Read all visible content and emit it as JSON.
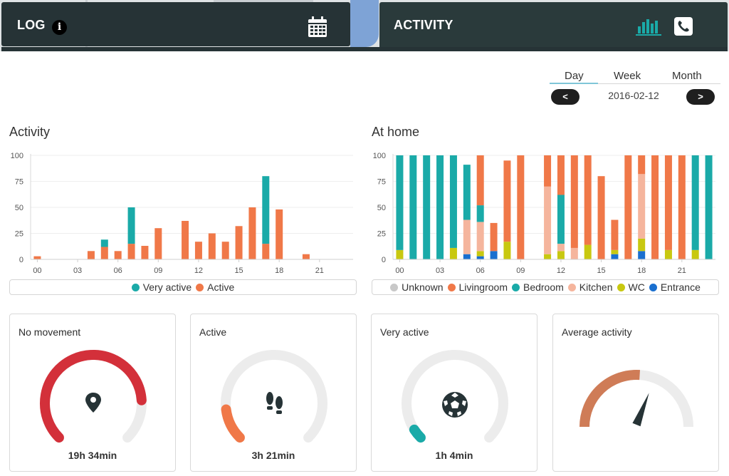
{
  "header": {
    "log_title": "LOG",
    "info_label": "i",
    "activity_title": "ACTIVITY",
    "icons": [
      "calendar-icon",
      "bar-chart-icon",
      "phone-icon",
      "info-icon"
    ]
  },
  "date_nav": {
    "tabs": [
      "Day",
      "Week",
      "Month"
    ],
    "active_tab": "Day",
    "prev_label": "<",
    "next_label": ">",
    "date": "2016-02-12"
  },
  "colors": {
    "very_active": "#1aaaa8",
    "active": "#f07848",
    "unknown": "#c8c8c8",
    "livingroom": "#f07848",
    "bedroom": "#1aaaa8",
    "kitchen": "#f5b59d",
    "wc": "#c8c810",
    "entrance": "#1a6fcf",
    "gauge_no_movement": "#d3303a",
    "gauge_active": "#f07848",
    "gauge_very_active": "#1aaaa8",
    "gauge_average": "#cf7c57",
    "gauge_track": "#ececec"
  },
  "chart_data": [
    {
      "type": "bar",
      "title": "Activity",
      "x": [
        0,
        1,
        2,
        3,
        4,
        5,
        6,
        7,
        8,
        9,
        10,
        11,
        12,
        13,
        14,
        15,
        16,
        17,
        18,
        19,
        20,
        21,
        22,
        23
      ],
      "xticks": [
        "00",
        "03",
        "06",
        "09",
        "12",
        "15",
        "18",
        "21"
      ],
      "yticks": [
        "0",
        "25",
        "50",
        "75",
        "100"
      ],
      "ylim": [
        0,
        100
      ],
      "stacked": true,
      "series": [
        {
          "name": "Active",
          "color": "#f07848",
          "values": [
            3,
            0,
            0,
            0,
            8,
            12,
            8,
            15,
            13,
            30,
            0,
            37,
            17,
            25,
            17,
            32,
            50,
            15,
            48,
            0,
            5,
            0,
            0,
            0
          ]
        },
        {
          "name": "Very active",
          "color": "#1aaaa8",
          "values": [
            0,
            0,
            0,
            0,
            0,
            7,
            0,
            35,
            0,
            0,
            0,
            0,
            0,
            0,
            0,
            0,
            0,
            65,
            0,
            0,
            0,
            0,
            0,
            0
          ]
        }
      ],
      "legend": [
        "Very active",
        "Active"
      ]
    },
    {
      "type": "bar",
      "title": "At home",
      "x": [
        0,
        1,
        2,
        3,
        4,
        5,
        6,
        7,
        8,
        9,
        10,
        11,
        12,
        13,
        14,
        15,
        16,
        17,
        18,
        19,
        20,
        21,
        22,
        23
      ],
      "xticks": [
        "00",
        "03",
        "06",
        "09",
        "12",
        "15",
        "18",
        "21"
      ],
      "yticks": [
        "0",
        "25",
        "50",
        "75",
        "100"
      ],
      "ylim": [
        0,
        100
      ],
      "stacked": true,
      "series": [
        {
          "name": "Entrance",
          "color": "#1a6fcf",
          "values": [
            0,
            0,
            0,
            0,
            0,
            5,
            3,
            8,
            0,
            0,
            0,
            0,
            0,
            0,
            0,
            0,
            5,
            0,
            8,
            0,
            0,
            0,
            0,
            0
          ]
        },
        {
          "name": "WC",
          "color": "#c8c810",
          "values": [
            9,
            0,
            0,
            0,
            11,
            0,
            5,
            0,
            17,
            0,
            0,
            5,
            8,
            0,
            14,
            0,
            4,
            0,
            12,
            0,
            9,
            0,
            9,
            0
          ]
        },
        {
          "name": "Kitchen",
          "color": "#f5b59d",
          "values": [
            0,
            0,
            0,
            0,
            0,
            33,
            28,
            0,
            0,
            0,
            0,
            65,
            7,
            11,
            0,
            0,
            0,
            0,
            62,
            0,
            0,
            0,
            0,
            0
          ]
        },
        {
          "name": "Bedroom",
          "color": "#1aaaa8",
          "values": [
            91,
            100,
            100,
            100,
            89,
            53,
            16,
            0,
            0,
            0,
            0,
            0,
            47,
            0,
            0,
            0,
            0,
            0,
            0,
            0,
            0,
            0,
            91,
            100
          ]
        },
        {
          "name": "Livingroom",
          "color": "#f07848",
          "values": [
            0,
            0,
            0,
            0,
            0,
            0,
            48,
            27,
            78,
            100,
            0,
            30,
            38,
            89,
            86,
            80,
            29,
            100,
            18,
            100,
            91,
            100,
            0,
            0
          ]
        },
        {
          "name": "Unknown",
          "color": "#c8c8c8",
          "values": [
            0,
            0,
            0,
            0,
            0,
            0,
            0,
            0,
            0,
            0,
            0,
            0,
            0,
            0,
            0,
            0,
            0,
            0,
            0,
            0,
            0,
            0,
            0,
            0
          ]
        }
      ],
      "legend": [
        "Unknown",
        "Livingroom",
        "Bedroom",
        "Kitchen",
        "WC",
        "Entrance"
      ]
    }
  ],
  "cards": [
    {
      "title": "No movement",
      "value": "19h 34min",
      "icon": "map-pin-icon",
      "fraction": 0.82
    },
    {
      "title": "Active",
      "value": "3h 21min",
      "icon": "footprints-icon",
      "fraction": 0.14
    },
    {
      "title": "Very active",
      "value": "1h 4min",
      "icon": "soccer-ball-icon",
      "fraction": 0.045
    },
    {
      "title": "Average activity",
      "value": "",
      "icon": "gauge-needle-icon",
      "fraction": 0.52
    }
  ]
}
